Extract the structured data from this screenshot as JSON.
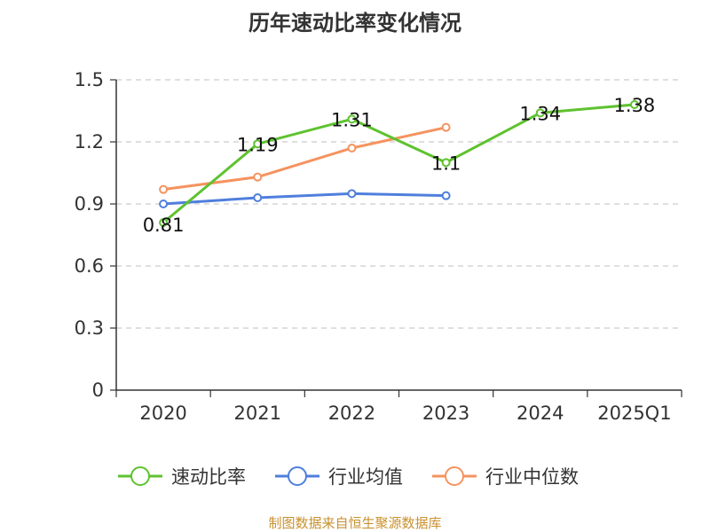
{
  "chart_data": {
    "type": "line",
    "title": "历年速动比率变化情况",
    "categories": [
      "2020",
      "2021",
      "2022",
      "2023",
      "2024",
      "2025Q1"
    ],
    "ylim": [
      0,
      1.5
    ],
    "yticks": [
      "0",
      "0.3",
      "0.6",
      "0.9",
      "1.2",
      "1.5"
    ],
    "ytick_values": [
      0,
      0.3,
      0.6,
      0.9,
      1.2,
      1.5
    ],
    "grid": true,
    "legend_position": "bottom",
    "series": [
      {
        "name": "速动比率",
        "color": "#5ec22f",
        "values": [
          0.81,
          1.19,
          1.31,
          1.1,
          1.34,
          1.38
        ],
        "labels": [
          "0.81",
          "1.19",
          "1.31",
          "1.1",
          "1.34",
          "1.38"
        ],
        "show_labels": true
      },
      {
        "name": "行业均值",
        "color": "#4f7fdc",
        "values": [
          0.9,
          0.93,
          0.95,
          0.94,
          null,
          null
        ],
        "show_labels": false
      },
      {
        "name": "行业中位数",
        "color": "#f5935f",
        "values": [
          0.97,
          1.03,
          1.17,
          1.27,
          null,
          null
        ],
        "show_labels": false
      }
    ]
  },
  "source_note": "制图数据来自恒生聚源数据库"
}
